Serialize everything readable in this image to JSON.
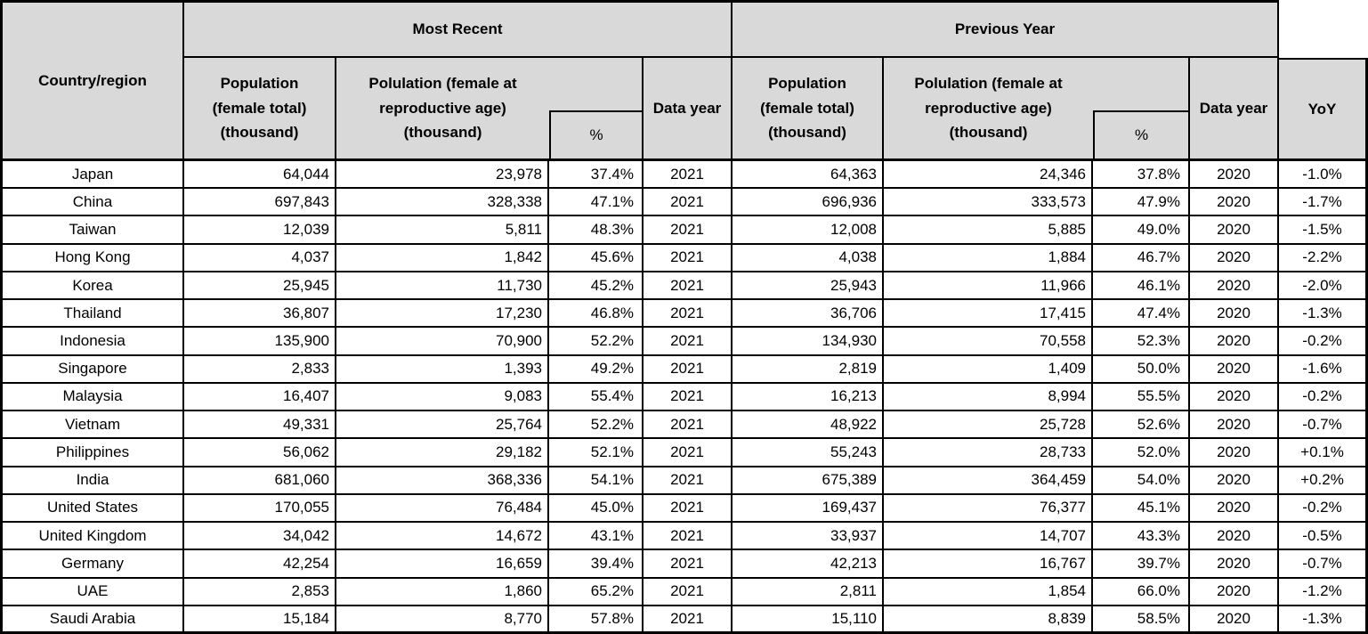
{
  "table": {
    "colors": {
      "header_bg": "#d9d9d9",
      "border": "#000000",
      "row_bg": "#ffffff",
      "text": "#000000"
    },
    "header": {
      "country_region": "Country/region",
      "group_recent": "Most Recent",
      "group_previous": "Previous Year",
      "population_total": "Population\n(female total)\n(thousand)",
      "population_reproductive": "Polulation (female at\nreproductive age)\n(thousand)",
      "percent": "%",
      "data_year": "Data year",
      "yoy": "YoY"
    },
    "rows": [
      {
        "country": "Japan",
        "recent": {
          "pop_total": "64,044",
          "pop_repro": "23,978",
          "pct": "37.4%",
          "year": "2021"
        },
        "previous": {
          "pop_total": "64,363",
          "pop_repro": "24,346",
          "pct": "37.8%",
          "year": "2020"
        },
        "yoy": "-1.0%"
      },
      {
        "country": "China",
        "recent": {
          "pop_total": "697,843",
          "pop_repro": "328,338",
          "pct": "47.1%",
          "year": "2021"
        },
        "previous": {
          "pop_total": "696,936",
          "pop_repro": "333,573",
          "pct": "47.9%",
          "year": "2020"
        },
        "yoy": "-1.7%"
      },
      {
        "country": "Taiwan",
        "recent": {
          "pop_total": "12,039",
          "pop_repro": "5,811",
          "pct": "48.3%",
          "year": "2021"
        },
        "previous": {
          "pop_total": "12,008",
          "pop_repro": "5,885",
          "pct": "49.0%",
          "year": "2020"
        },
        "yoy": "-1.5%"
      },
      {
        "country": "Hong Kong",
        "recent": {
          "pop_total": "4,037",
          "pop_repro": "1,842",
          "pct": "45.6%",
          "year": "2021"
        },
        "previous": {
          "pop_total": "4,038",
          "pop_repro": "1,884",
          "pct": "46.7%",
          "year": "2020"
        },
        "yoy": "-2.2%"
      },
      {
        "country": "Korea",
        "recent": {
          "pop_total": "25,945",
          "pop_repro": "11,730",
          "pct": "45.2%",
          "year": "2021"
        },
        "previous": {
          "pop_total": "25,943",
          "pop_repro": "11,966",
          "pct": "46.1%",
          "year": "2020"
        },
        "yoy": "-2.0%"
      },
      {
        "country": "Thailand",
        "recent": {
          "pop_total": "36,807",
          "pop_repro": "17,230",
          "pct": "46.8%",
          "year": "2021"
        },
        "previous": {
          "pop_total": "36,706",
          "pop_repro": "17,415",
          "pct": "47.4%",
          "year": "2020"
        },
        "yoy": "-1.3%"
      },
      {
        "country": "Indonesia",
        "recent": {
          "pop_total": "135,900",
          "pop_repro": "70,900",
          "pct": "52.2%",
          "year": "2021"
        },
        "previous": {
          "pop_total": "134,930",
          "pop_repro": "70,558",
          "pct": "52.3%",
          "year": "2020"
        },
        "yoy": "-0.2%"
      },
      {
        "country": "Singapore",
        "recent": {
          "pop_total": "2,833",
          "pop_repro": "1,393",
          "pct": "49.2%",
          "year": "2021"
        },
        "previous": {
          "pop_total": "2,819",
          "pop_repro": "1,409",
          "pct": "50.0%",
          "year": "2020"
        },
        "yoy": "-1.6%"
      },
      {
        "country": "Malaysia",
        "recent": {
          "pop_total": "16,407",
          "pop_repro": "9,083",
          "pct": "55.4%",
          "year": "2021"
        },
        "previous": {
          "pop_total": "16,213",
          "pop_repro": "8,994",
          "pct": "55.5%",
          "year": "2020"
        },
        "yoy": "-0.2%"
      },
      {
        "country": "Vietnam",
        "recent": {
          "pop_total": "49,331",
          "pop_repro": "25,764",
          "pct": "52.2%",
          "year": "2021"
        },
        "previous": {
          "pop_total": "48,922",
          "pop_repro": "25,728",
          "pct": "52.6%",
          "year": "2020"
        },
        "yoy": "-0.7%"
      },
      {
        "country": "Philippines",
        "recent": {
          "pop_total": "56,062",
          "pop_repro": "29,182",
          "pct": "52.1%",
          "year": "2021"
        },
        "previous": {
          "pop_total": "55,243",
          "pop_repro": "28,733",
          "pct": "52.0%",
          "year": "2020"
        },
        "yoy": "+0.1%"
      },
      {
        "country": "India",
        "recent": {
          "pop_total": "681,060",
          "pop_repro": "368,336",
          "pct": "54.1%",
          "year": "2021"
        },
        "previous": {
          "pop_total": "675,389",
          "pop_repro": "364,459",
          "pct": "54.0%",
          "year": "2020"
        },
        "yoy": "+0.2%"
      },
      {
        "country": "United States",
        "recent": {
          "pop_total": "170,055",
          "pop_repro": "76,484",
          "pct": "45.0%",
          "year": "2021"
        },
        "previous": {
          "pop_total": "169,437",
          "pop_repro": "76,377",
          "pct": "45.1%",
          "year": "2020"
        },
        "yoy": "-0.2%"
      },
      {
        "country": "United Kingdom",
        "recent": {
          "pop_total": "34,042",
          "pop_repro": "14,672",
          "pct": "43.1%",
          "year": "2021"
        },
        "previous": {
          "pop_total": "33,937",
          "pop_repro": "14,707",
          "pct": "43.3%",
          "year": "2020"
        },
        "yoy": "-0.5%"
      },
      {
        "country": "Germany",
        "recent": {
          "pop_total": "42,254",
          "pop_repro": "16,659",
          "pct": "39.4%",
          "year": "2021"
        },
        "previous": {
          "pop_total": "42,213",
          "pop_repro": "16,767",
          "pct": "39.7%",
          "year": "2020"
        },
        "yoy": "-0.7%"
      },
      {
        "country": "UAE",
        "recent": {
          "pop_total": "2,853",
          "pop_repro": "1,860",
          "pct": "65.2%",
          "year": "2021"
        },
        "previous": {
          "pop_total": "2,811",
          "pop_repro": "1,854",
          "pct": "66.0%",
          "year": "2020"
        },
        "yoy": "-1.2%"
      },
      {
        "country": "Saudi Arabia",
        "recent": {
          "pop_total": "15,184",
          "pop_repro": "8,770",
          "pct": "57.8%",
          "year": "2021"
        },
        "previous": {
          "pop_total": "15,110",
          "pop_repro": "8,839",
          "pct": "58.5%",
          "year": "2020"
        },
        "yoy": "-1.3%"
      }
    ]
  }
}
